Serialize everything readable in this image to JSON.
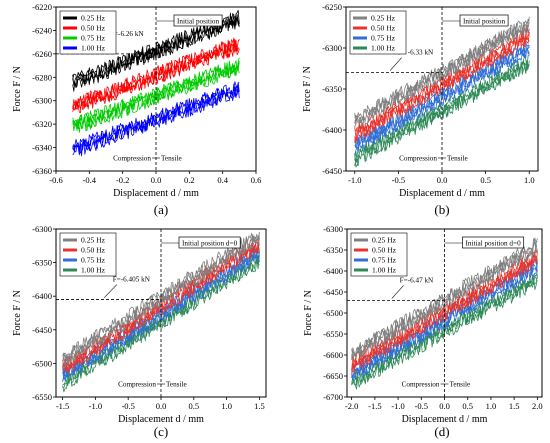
{
  "figure": {
    "legend_labels": [
      "0.25 Hz",
      "0.50 Hz",
      "0.75 Hz",
      "1.00 Hz"
    ],
    "xlabel": "Displacement d / mm",
    "ylabel": "Force F / N",
    "compression_label": "Compression",
    "tensile_label": "Tensile"
  },
  "chart_data": [
    {
      "type": "line",
      "panel_label": "(a)",
      "xlabel": "Displacement d / mm",
      "ylabel": "Force F / N",
      "xlim": [
        -0.6,
        0.6
      ],
      "ylim": [
        -6360,
        -6220
      ],
      "xticks": [
        -0.6,
        -0.4,
        -0.2,
        0.0,
        0.2,
        0.4,
        0.6
      ],
      "yticks": [
        -6220,
        -6240,
        -6260,
        -6280,
        -6300,
        -6320,
        -6340,
        -6360
      ],
      "legend_placement": "top-left",
      "initial_position_label": "Initial position",
      "force_annotation": "F=-6.26 kN",
      "reference_force": -6260,
      "data_x_range": [
        -0.5,
        0.5
      ],
      "series": [
        {
          "name": "0.25 Hz",
          "color": "#000000",
          "x": [
            -0.5,
            0.5
          ],
          "y": [
            -6285,
            -6230
          ]
        },
        {
          "name": "0.50 Hz",
          "color": "#ff0000",
          "x": [
            -0.5,
            0.5
          ],
          "y": [
            -6305,
            -6252
          ]
        },
        {
          "name": "0.75 Hz",
          "color": "#00cc00",
          "x": [
            -0.5,
            0.5
          ],
          "y": [
            -6322,
            -6270
          ]
        },
        {
          "name": "1.00 Hz",
          "color": "#0000ff",
          "x": [
            -0.5,
            0.5
          ],
          "y": [
            -6342,
            -6290
          ]
        }
      ]
    },
    {
      "type": "line",
      "panel_label": "(b)",
      "xlabel": "Displacement d / mm",
      "ylabel": "Force F / N",
      "xlim": [
        -1.1,
        1.1
      ],
      "ylim": [
        -6450,
        -6250
      ],
      "xticks": [
        -1.0,
        -0.5,
        0.0,
        0.5,
        1.0
      ],
      "yticks": [
        -6250,
        -6300,
        -6350,
        -6400,
        -6450
      ],
      "legend_placement": "top-left",
      "initial_position_label": "Initial position",
      "force_annotation": "F= -6.33 kN",
      "reference_force": -6330,
      "data_x_range": [
        -1.0,
        1.0
      ],
      "series": [
        {
          "name": "0.25 Hz",
          "color": "#808080",
          "x": [
            -1.0,
            1.0
          ],
          "y": [
            -6390,
            -6270
          ]
        },
        {
          "name": "0.50 Hz",
          "color": "#e8342c",
          "x": [
            -1.0,
            1.0
          ],
          "y": [
            -6405,
            -6285
          ]
        },
        {
          "name": "0.75 Hz",
          "color": "#2f6fd8",
          "x": [
            -1.0,
            1.0
          ],
          "y": [
            -6420,
            -6300
          ]
        },
        {
          "name": "1.00 Hz",
          "color": "#2e8b57",
          "x": [
            -1.0,
            1.0
          ],
          "y": [
            -6435,
            -6318
          ]
        }
      ]
    },
    {
      "type": "line",
      "panel_label": "(c)",
      "xlabel": "Displacement d / mm",
      "ylabel": "Force F / N",
      "xlim": [
        -1.6,
        1.6
      ],
      "ylim": [
        -6550,
        -6300
      ],
      "xticks": [
        -1.5,
        -1.0,
        -0.5,
        0.0,
        0.5,
        1.0,
        1.5
      ],
      "yticks": [
        -6300,
        -6350,
        -6400,
        -6450,
        -6500,
        -6550
      ],
      "legend_placement": "top-left",
      "initial_position_label": "Initial position d=0",
      "force_annotation": "F=-6.405 kN",
      "reference_force": -6405,
      "data_x_range": [
        -1.5,
        1.5
      ],
      "series": [
        {
          "name": "0.25 Hz",
          "color": "#808080",
          "x": [
            -1.5,
            1.5
          ],
          "y": [
            -6495,
            -6310
          ]
        },
        {
          "name": "0.50 Hz",
          "color": "#e8342c",
          "x": [
            -1.5,
            1.5
          ],
          "y": [
            -6508,
            -6322
          ]
        },
        {
          "name": "0.75 Hz",
          "color": "#2f6fd8",
          "x": [
            -1.5,
            1.5
          ],
          "y": [
            -6518,
            -6335
          ]
        },
        {
          "name": "1.00 Hz",
          "color": "#2e8b57",
          "x": [
            -1.5,
            1.5
          ],
          "y": [
            -6530,
            -6345
          ]
        }
      ]
    },
    {
      "type": "line",
      "panel_label": "(d)",
      "xlabel": "Displacement d / mm",
      "ylabel": "Force F / N",
      "xlim": [
        -2.1,
        2.1
      ],
      "ylim": [
        -6700,
        -6300
      ],
      "xticks": [
        -2.0,
        -1.5,
        -1.0,
        -0.5,
        0.0,
        0.5,
        1.0,
        1.5,
        2.0
      ],
      "yticks": [
        -6300,
        -6350,
        -6400,
        -6450,
        -6500,
        -6550,
        -6600,
        -6650,
        -6700
      ],
      "legend_placement": "top-left",
      "initial_position_label": "Initial position d=0",
      "force_annotation": "F=-6.47 kN",
      "reference_force": -6470,
      "data_x_range": [
        -2.0,
        2.0
      ],
      "series": [
        {
          "name": "0.25 Hz",
          "color": "#808080",
          "x": [
            -2.0,
            2.0
          ],
          "y": [
            -6600,
            -6340
          ]
        },
        {
          "name": "0.50 Hz",
          "color": "#e8342c",
          "x": [
            -2.0,
            2.0
          ],
          "y": [
            -6625,
            -6370
          ]
        },
        {
          "name": "0.75 Hz",
          "color": "#2f6fd8",
          "x": [
            -2.0,
            2.0
          ],
          "y": [
            -6645,
            -6390
          ]
        },
        {
          "name": "1.00 Hz",
          "color": "#2e8b57",
          "x": [
            -2.0,
            2.0
          ],
          "y": [
            -6665,
            -6420
          ]
        }
      ]
    }
  ]
}
